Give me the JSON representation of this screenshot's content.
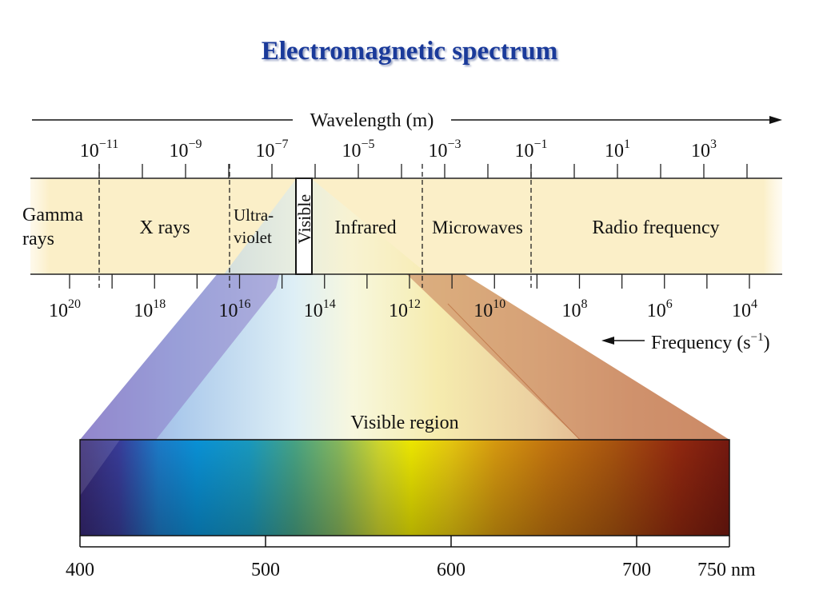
{
  "title": "Electromagnetic spectrum",
  "wavelength_axis": {
    "label": "Wavelength (m)",
    "ticks": [
      {
        "base": "10",
        "exp": "−11",
        "value": 1e-11
      },
      {
        "base": "10",
        "exp": "−9",
        "value": 1e-09
      },
      {
        "base": "10",
        "exp": "−7",
        "value": 1e-07
      },
      {
        "base": "10",
        "exp": "−5",
        "value": 1e-05
      },
      {
        "base": "10",
        "exp": "−3",
        "value": 0.001
      },
      {
        "base": "10",
        "exp": "−1",
        "value": 0.1
      },
      {
        "base": "10",
        "exp": "1",
        "value": 10
      },
      {
        "base": "10",
        "exp": "3",
        "value": 1000
      }
    ]
  },
  "frequency_axis": {
    "label": "Frequency (s",
    "label_exp": "−1",
    "label_close": ")",
    "ticks": [
      {
        "base": "10",
        "exp": "20",
        "value": 1e+20
      },
      {
        "base": "10",
        "exp": "18",
        "value": 1e+18
      },
      {
        "base": "10",
        "exp": "16",
        "value": 1e+16
      },
      {
        "base": "10",
        "exp": "14",
        "value": 100000000000000.0
      },
      {
        "base": "10",
        "exp": "12",
        "value": 1000000000000.0
      },
      {
        "base": "10",
        "exp": "10",
        "value": 10000000000.0
      },
      {
        "base": "10",
        "exp": "8",
        "value": 100000000.0
      },
      {
        "base": "10",
        "exp": "6",
        "value": 1000000.0
      },
      {
        "base": "10",
        "exp": "4",
        "value": 10000.0
      }
    ]
  },
  "regions": {
    "gamma": [
      "Gamma",
      "rays"
    ],
    "xray": "X rays",
    "uv": [
      "Ultra-",
      "violet"
    ],
    "visible": "Visible",
    "infrared": "Infrared",
    "microwaves": "Microwaves",
    "radio": "Radio frequency"
  },
  "visible_region": {
    "label": "Visible region",
    "ticks": [
      "400",
      "500",
      "600",
      "700",
      "750 nm"
    ],
    "tick_values_nm": [
      400,
      500,
      600,
      700,
      750
    ]
  },
  "colors": {
    "title": "#1a3a9a",
    "band": "#fbefc8"
  }
}
